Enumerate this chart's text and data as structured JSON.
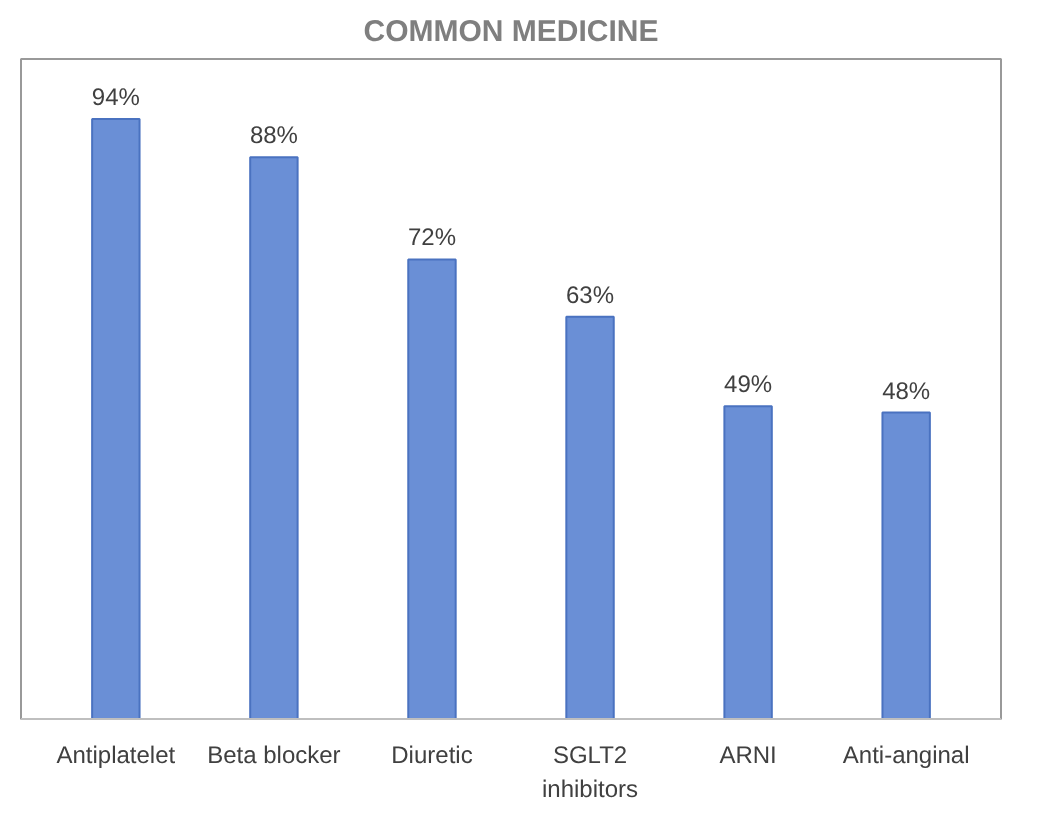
{
  "chart_data": {
    "type": "bar",
    "title": "COMMON MEDICINE",
    "categories": [
      "Antiplatelet",
      "Beta blocker",
      "Diuretic",
      "SGLT2 inhibitors",
      "ARNI",
      "Anti-anginal"
    ],
    "values": [
      94,
      88,
      72,
      63,
      49,
      48
    ],
    "value_labels": [
      "94%",
      "88%",
      "72%",
      "63%",
      "49%",
      "48%"
    ],
    "color": "#6a8fd6"
  }
}
